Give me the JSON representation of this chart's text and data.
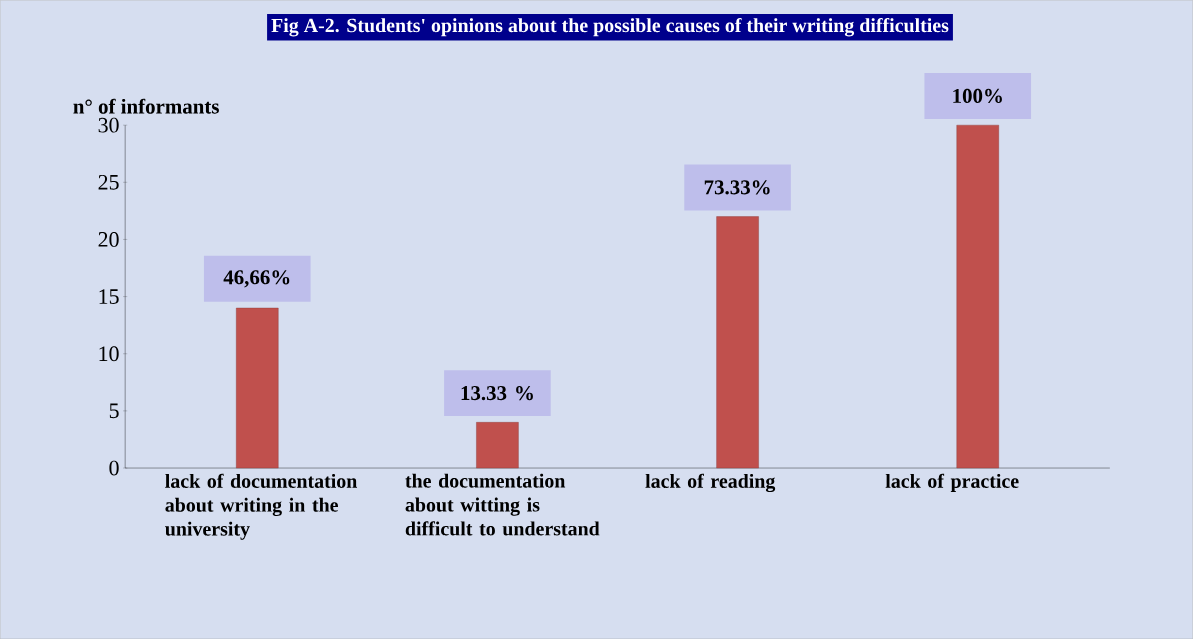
{
  "chart_data": {
    "type": "bar",
    "title": "Fig A-2. Students' opinions about the possible causes of their writing difficulties",
    "ylabel": "n° of informants",
    "categories": [
      "lack of documentation about writing in the university",
      "the documentation about witting is difficult to understand",
      "lack of reading",
      "lack of practice"
    ],
    "values": [
      14,
      4,
      22,
      30
    ],
    "annotations": [
      {
        "text": "46,66%",
        "x": "lack of documentation about writing in the university",
        "y": 14
      },
      {
        "text": "13.33 %",
        "x": "the documentation about witting is difficult to understand",
        "y": 4
      },
      {
        "text": "73.33%",
        "x": "lack of reading",
        "y": 22
      },
      "100%"
    ],
    "color": "#c0504d",
    "ylim": [
      0,
      30
    ],
    "yticks": [
      0,
      5,
      10,
      15,
      20,
      25,
      30
    ],
    "grid": false,
    "legend": false
  }
}
